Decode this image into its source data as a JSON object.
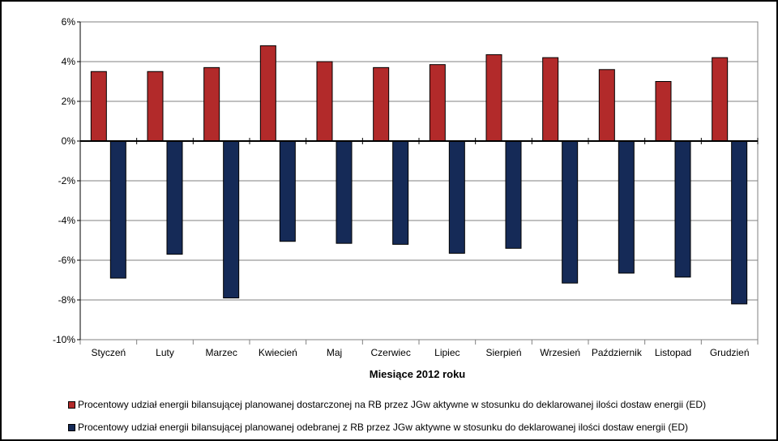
{
  "chart_data": {
    "type": "bar",
    "xlabel": "Miesiące 2012 roku",
    "ylabel": "",
    "ylim": [
      -10,
      6
    ],
    "y_ticks": [
      6,
      4,
      2,
      0,
      -2,
      -4,
      -6,
      -8,
      -10
    ],
    "y_tick_labels": [
      "6%",
      "4%",
      "2%",
      "0%",
      "-2%",
      "-4%",
      "-6%",
      "-8%",
      "-10%"
    ],
    "grid": true,
    "legend_position": "bottom",
    "categories": [
      "Styczeń",
      "Luty",
      "Marzec",
      "Kwiecień",
      "Maj",
      "Czerwiec",
      "Lipiec",
      "Sierpień",
      "Wrzesień",
      "Październik",
      "Listopad",
      "Grudzień"
    ],
    "series": [
      {
        "name": "Procentowy udział energii bilansującej planowanej dostarczonej na RB przez JGw aktywne w stosunku do deklarowanej ilości dostaw energii (ED)",
        "color": "#b22a2a",
        "values": [
          3.5,
          3.5,
          3.7,
          4.8,
          4.0,
          3.7,
          3.85,
          4.35,
          4.2,
          3.6,
          3.0,
          4.2
        ]
      },
      {
        "name": "Procentowy udział energii bilansującej planowanej odebranej z RB przez JGw aktywne w stosunku do deklarowanej ilości dostaw energii (ED)",
        "color": "#152a57",
        "values": [
          -6.9,
          -5.7,
          -7.9,
          -5.05,
          -5.15,
          -5.2,
          -5.65,
          -5.4,
          -7.15,
          -6.65,
          -6.85,
          -8.2
        ]
      }
    ]
  }
}
